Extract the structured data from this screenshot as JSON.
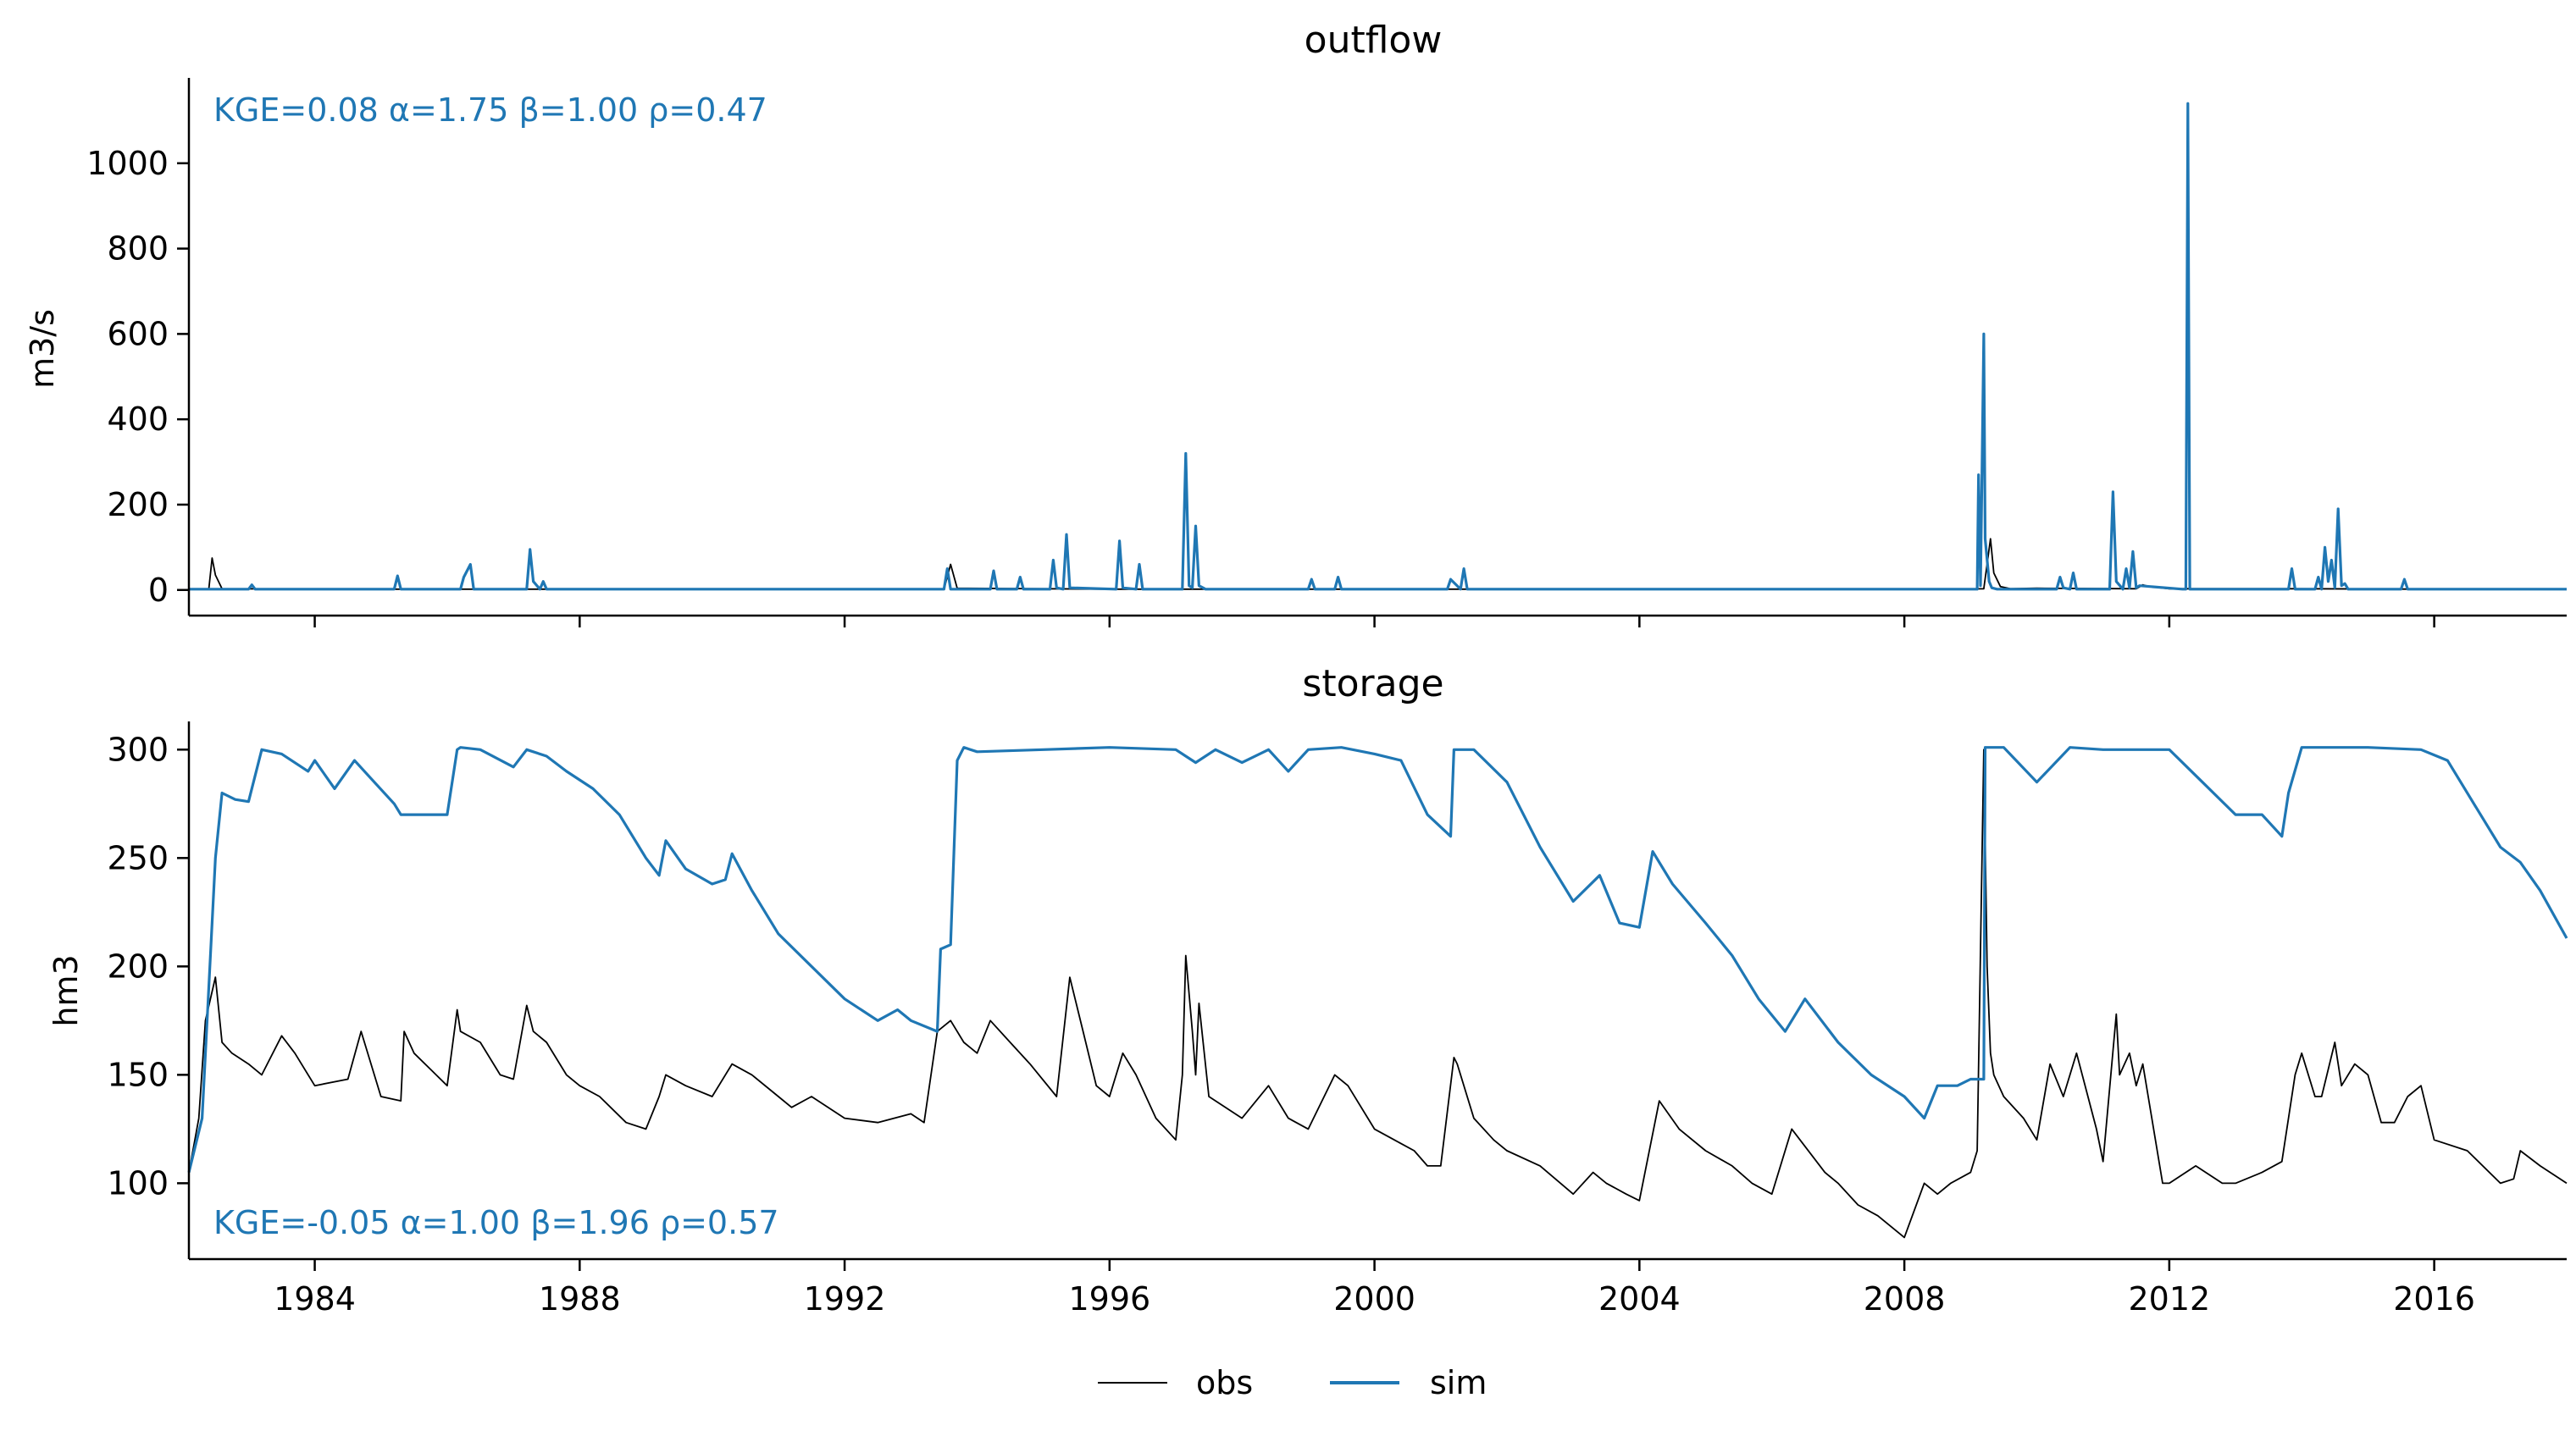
{
  "colors": {
    "obs": "#000000",
    "sim": "#1f77b4",
    "axis": "#000000"
  },
  "x_ticks": [
    "1984",
    "1988",
    "1992",
    "1996",
    "2000",
    "2004",
    "2008",
    "2012",
    "2016"
  ],
  "legend": {
    "placement": "bottom-center",
    "obs_label": "obs",
    "sim_label": "sim"
  },
  "chart_data": [
    {
      "type": "line",
      "title": "outflow",
      "ylabel": "m3/s",
      "xlabel": "",
      "xlim": [
        1982.1,
        2018.0
      ],
      "ylim": [
        -60,
        1200
      ],
      "y_ticks": [
        "0",
        "200",
        "400",
        "600",
        "800",
        "1000"
      ],
      "grid": false,
      "metrics_text": "KGE=0.08  α=1.75  β=1.00  ρ=0.47",
      "metrics_placement": "top-left",
      "series": [
        {
          "name": "obs",
          "x": [
            1982.1,
            1982.4,
            1982.45,
            1982.5,
            1982.6,
            1985.0,
            1990.0,
            1993.5,
            1993.6,
            1993.7,
            1996.0,
            2000.0,
            2004.0,
            2008.0,
            2009.2,
            2009.3,
            2009.35,
            2009.45,
            2009.6,
            2010.0,
            2011.5,
            2011.6,
            2011.7,
            2012.0,
            2014.0,
            2016.0,
            2018.0
          ],
          "y": [
            2,
            2,
            75,
            35,
            3,
            2,
            2,
            2,
            60,
            4,
            2,
            2,
            2,
            2,
            3,
            120,
            40,
            8,
            3,
            4,
            3,
            12,
            8,
            3,
            3,
            2,
            2
          ]
        },
        {
          "name": "sim",
          "x": [
            1982.1,
            1983.0,
            1983.05,
            1983.1,
            1985.2,
            1985.25,
            1985.3,
            1986.2,
            1986.25,
            1986.35,
            1986.4,
            1987.2,
            1987.25,
            1987.3,
            1987.4,
            1987.45,
            1987.5,
            1990.0,
            1993.5,
            1993.55,
            1993.6,
            1994.2,
            1994.25,
            1994.3,
            1994.6,
            1994.65,
            1994.7,
            1995.1,
            1995.15,
            1995.2,
            1995.3,
            1995.35,
            1995.4,
            1996.1,
            1996.15,
            1996.2,
            1996.4,
            1996.45,
            1996.5,
            1997.1,
            1997.15,
            1997.2,
            1997.25,
            1997.3,
            1997.35,
            1997.45,
            1999.0,
            1999.05,
            1999.1,
            1999.4,
            1999.45,
            1999.5,
            2001.1,
            2001.15,
            2001.3,
            2001.35,
            2001.4,
            2004.0,
            2008.0,
            2009.1,
            2009.12,
            2009.15,
            2009.2,
            2009.22,
            2009.28,
            2009.32,
            2009.4,
            2010.3,
            2010.35,
            2010.4,
            2010.5,
            2010.55,
            2010.6,
            2011.1,
            2011.15,
            2011.2,
            2011.3,
            2011.35,
            2011.4,
            2011.45,
            2011.5,
            2011.55,
            2012.2,
            2012.25,
            2012.28,
            2012.31,
            2013.8,
            2013.85,
            2013.9,
            2014.2,
            2014.25,
            2014.3,
            2014.35,
            2014.4,
            2014.45,
            2014.5,
            2014.55,
            2014.6,
            2014.65,
            2014.7,
            2014.9,
            2015.5,
            2015.55,
            2015.6,
            2018.0
          ],
          "y": [
            2,
            2,
            12,
            2,
            2,
            33,
            2,
            2,
            30,
            60,
            2,
            2,
            95,
            20,
            2,
            20,
            2,
            2,
            2,
            50,
            2,
            2,
            45,
            2,
            2,
            30,
            2,
            2,
            70,
            5,
            2,
            130,
            5,
            2,
            115,
            5,
            2,
            60,
            2,
            2,
            320,
            10,
            5,
            150,
            10,
            2,
            2,
            25,
            2,
            2,
            30,
            2,
            2,
            25,
            2,
            50,
            2,
            2,
            2,
            2,
            270,
            10,
            600,
            120,
            20,
            5,
            2,
            2,
            30,
            5,
            2,
            40,
            2,
            2,
            230,
            20,
            2,
            50,
            5,
            90,
            5,
            10,
            2,
            2,
            1140,
            2,
            2,
            50,
            2,
            2,
            30,
            2,
            100,
            20,
            70,
            5,
            190,
            10,
            15,
            2,
            2,
            2,
            25,
            2,
            2
          ]
        }
      ]
    },
    {
      "type": "line",
      "title": "storage",
      "ylabel": "hm3",
      "xlabel": "",
      "xlim": [
        1982.1,
        2018.0
      ],
      "ylim": [
        65,
        313
      ],
      "y_ticks": [
        "100",
        "150",
        "200",
        "250",
        "300"
      ],
      "grid": false,
      "metrics_text": "KGE=-0.05  α=1.00  β=1.96  ρ=0.57",
      "metrics_placement": "bottom-left",
      "series": [
        {
          "name": "obs",
          "x": [
            1982.1,
            1982.25,
            1982.35,
            1982.5,
            1982.6,
            1982.75,
            1983.0,
            1983.2,
            1983.5,
            1983.7,
            1984.0,
            1984.5,
            1984.7,
            1985.0,
            1985.3,
            1985.35,
            1985.5,
            1986.0,
            1986.15,
            1986.2,
            1986.5,
            1986.8,
            1987.0,
            1987.2,
            1987.3,
            1987.5,
            1987.8,
            1988.0,
            1988.3,
            1988.7,
            1989.0,
            1989.2,
            1989.3,
            1989.6,
            1990.0,
            1990.3,
            1990.6,
            1991.0,
            1991.2,
            1991.5,
            1992.0,
            1992.5,
            1993.0,
            1993.2,
            1993.4,
            1993.6,
            1993.8,
            1994.0,
            1994.2,
            1994.5,
            1994.8,
            1995.2,
            1995.4,
            1995.6,
            1995.8,
            1996.0,
            1996.2,
            1996.4,
            1996.7,
            1997.0,
            1997.1,
            1997.15,
            1997.25,
            1997.3,
            1997.35,
            1997.5,
            1998.0,
            1998.4,
            1998.7,
            1999.0,
            1999.4,
            1999.6,
            2000.0,
            2000.3,
            2000.6,
            2000.8,
            2001.0,
            2001.2,
            2001.25,
            2001.3,
            2001.5,
            2001.8,
            2002.0,
            2002.5,
            2003.0,
            2003.3,
            2003.5,
            2003.8,
            2004.0,
            2004.3,
            2004.6,
            2005.0,
            2005.4,
            2005.7,
            2006.0,
            2006.3,
            2006.8,
            2007.0,
            2007.3,
            2007.6,
            2008.0,
            2008.3,
            2008.5,
            2008.7,
            2009.0,
            2009.1,
            2009.2,
            2009.25,
            2009.3,
            2009.35,
            2009.5,
            2009.8,
            2010.0,
            2010.2,
            2010.4,
            2010.6,
            2010.9,
            2011.0,
            2011.2,
            2011.25,
            2011.4,
            2011.5,
            2011.6,
            2011.9,
            2012.0,
            2012.4,
            2012.8,
            2013.0,
            2013.4,
            2013.7,
            2013.9,
            2014.0,
            2014.2,
            2014.3,
            2014.5,
            2014.6,
            2014.8,
            2015.0,
            2015.2,
            2015.4,
            2015.6,
            2015.8,
            2016.0,
            2016.5,
            2017.0,
            2017.2,
            2017.3,
            2017.6,
            2018.0
          ],
          "y": [
            105,
            130,
            175,
            195,
            165,
            160,
            155,
            150,
            168,
            160,
            145,
            148,
            170,
            140,
            138,
            170,
            160,
            145,
            180,
            170,
            165,
            150,
            148,
            182,
            170,
            165,
            150,
            145,
            140,
            128,
            125,
            140,
            150,
            145,
            140,
            155,
            150,
            140,
            135,
            140,
            130,
            128,
            132,
            128,
            170,
            175,
            165,
            160,
            175,
            165,
            155,
            140,
            195,
            170,
            145,
            140,
            160,
            150,
            130,
            120,
            150,
            205,
            170,
            150,
            183,
            140,
            130,
            145,
            130,
            125,
            150,
            145,
            125,
            120,
            115,
            108,
            108,
            158,
            155,
            150,
            130,
            120,
            115,
            108,
            95,
            105,
            100,
            95,
            92,
            138,
            125,
            115,
            108,
            100,
            95,
            125,
            105,
            100,
            90,
            85,
            75,
            100,
            95,
            100,
            105,
            115,
            300,
            200,
            160,
            150,
            140,
            130,
            120,
            155,
            140,
            160,
            125,
            110,
            178,
            150,
            160,
            145,
            155,
            100,
            100,
            108,
            100,
            100,
            105,
            110,
            150,
            160,
            140,
            140,
            165,
            145,
            155,
            150,
            128,
            128,
            140,
            145,
            120,
            115,
            100,
            102,
            115,
            108,
            100
          ]
        },
        {
          "name": "sim",
          "x": [
            1982.1,
            1982.3,
            1982.5,
            1982.6,
            1982.8,
            1983.0,
            1983.2,
            1983.5,
            1983.9,
            1984.0,
            1984.3,
            1984.6,
            1984.9,
            1985.2,
            1985.3,
            1985.6,
            1986.0,
            1986.15,
            1986.2,
            1986.5,
            1987.0,
            1987.2,
            1987.5,
            1987.8,
            1988.2,
            1988.6,
            1989.0,
            1989.2,
            1989.3,
            1989.6,
            1990.0,
            1990.2,
            1990.3,
            1990.6,
            1991.0,
            1991.5,
            1992.0,
            1992.5,
            1992.8,
            1993.0,
            1993.4,
            1993.45,
            1993.6,
            1993.7,
            1993.8,
            1994.0,
            1995.0,
            1996.0,
            1997.0,
            1997.3,
            1997.6,
            1998.0,
            1998.4,
            1998.7,
            1999.0,
            1999.5,
            2000.0,
            2000.4,
            2000.8,
            2001.15,
            2001.2,
            2001.5,
            2002.0,
            2002.5,
            2003.0,
            2003.4,
            2003.7,
            2004.0,
            2004.2,
            2004.5,
            2005.0,
            2005.4,
            2005.8,
            2006.2,
            2006.5,
            2007.0,
            2007.5,
            2008.0,
            2008.3,
            2008.5,
            2008.8,
            2009.0,
            2009.2,
            2009.22,
            2009.5,
            2010.0,
            2010.5,
            2011.0,
            2012.0,
            2012.5,
            2013.0,
            2013.4,
            2013.7,
            2013.8,
            2014.0,
            2015.0,
            2015.8,
            2016.2,
            2016.6,
            2017.0,
            2017.3,
            2017.6,
            2018.0
          ],
          "y": [
            105,
            130,
            250,
            280,
            277,
            276,
            300,
            298,
            290,
            295,
            282,
            295,
            285,
            275,
            270,
            270,
            270,
            300,
            301,
            300,
            292,
            300,
            297,
            290,
            282,
            270,
            250,
            242,
            258,
            245,
            238,
            240,
            252,
            235,
            215,
            200,
            185,
            175,
            180,
            175,
            170,
            208,
            210,
            295,
            301,
            299,
            300,
            301,
            300,
            294,
            300,
            294,
            300,
            290,
            300,
            301,
            298,
            295,
            270,
            260,
            300,
            300,
            285,
            255,
            230,
            242,
            220,
            218,
            253,
            238,
            220,
            205,
            185,
            170,
            185,
            165,
            150,
            140,
            130,
            145,
            145,
            148,
            148,
            301,
            301,
            285,
            301,
            300,
            300,
            285,
            270,
            270,
            260,
            280,
            301,
            301,
            300,
            295,
            275,
            255,
            248,
            235,
            213
          ]
        }
      ]
    }
  ]
}
